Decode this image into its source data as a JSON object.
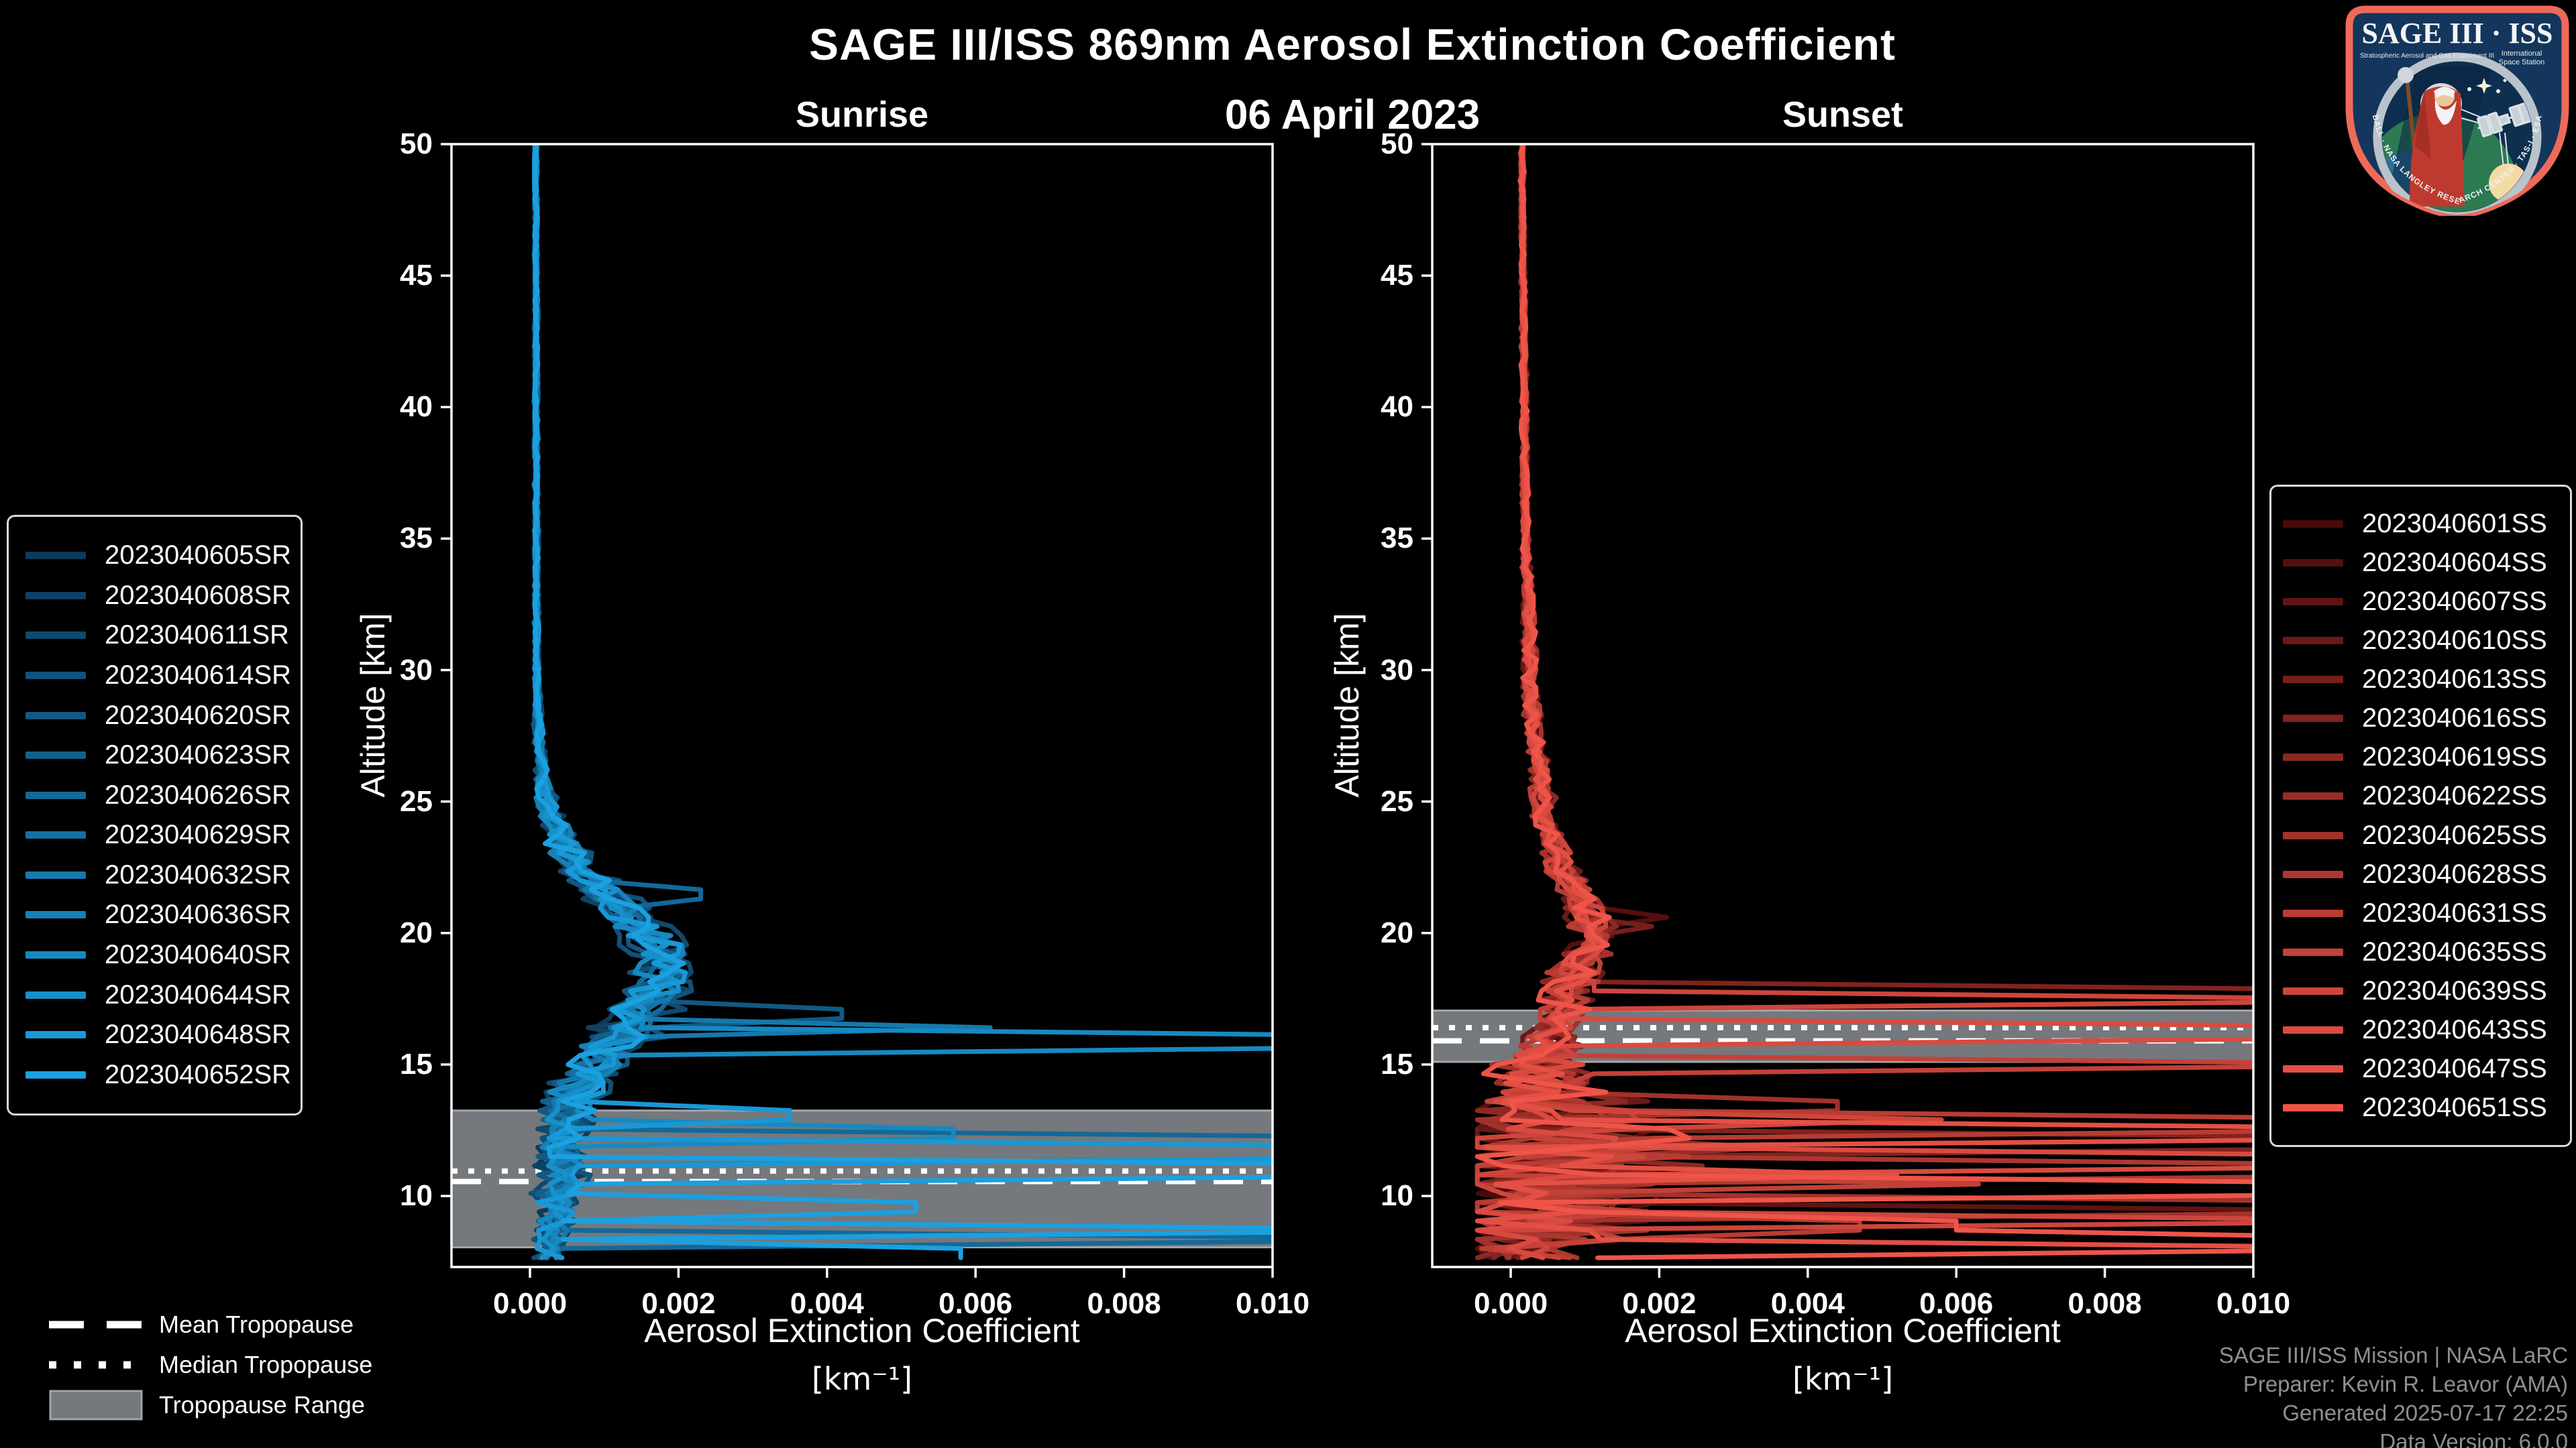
{
  "title": "SAGE III/ISS 869nm Aerosol Extinction Coefficient",
  "subtitle_date": "06 April 2023",
  "axes": {
    "x_label": "Aerosol Extinction Coefficient",
    "x_unit": "[km⁻¹]",
    "y_label": "Altitude [km]",
    "x_tick_labels": [
      "0.000",
      "0.002",
      "0.004",
      "0.006",
      "0.008",
      "0.010"
    ],
    "x_tick_values": [
      0.0,
      0.002,
      0.004,
      0.006,
      0.008,
      0.01
    ],
    "y_tick_labels": [
      "10",
      "15",
      "20",
      "25",
      "30",
      "35",
      "40",
      "45",
      "50"
    ],
    "y_tick_values": [
      10,
      15,
      20,
      25,
      30,
      35,
      40,
      45,
      50
    ]
  },
  "tropopause_legend": [
    {
      "label": "Mean Tropopause",
      "style": "dashed"
    },
    {
      "label": "Median Tropopause",
      "style": "dotted"
    },
    {
      "label": "Tropopause Range",
      "style": "band"
    }
  ],
  "footer": {
    "lines": [
      "SAGE III/ISS Mission | NASA LaRC",
      "Preparer: Kevin R. Leavor (AMA)",
      "Generated 2025-07-17 22:25",
      "Data Version: 6.0.0"
    ]
  },
  "logo": {
    "main_text": "SAGE III · ISS",
    "sub_left": "Stratospheric Aerosol and Gas Experiment III",
    "sub_right_1": "International",
    "sub_right_2": "Space Station",
    "ring_text": "BALL · NASA LANGLEY RESEARCH CENTER · TAS-I · ESA",
    "border_color": "#ee6a58",
    "field_color": "#14365c"
  },
  "colors": {
    "background": "#000000",
    "spine": "#ffffff",
    "tropopause_band": "#75787c",
    "tropopause_band_edge": "#a2a5a9",
    "tropopause_line": "#ffffff",
    "footer_text": "#8d9094"
  },
  "chart_data": [
    {
      "type": "line",
      "panel": "sunrise",
      "title": "Sunrise",
      "xlabel": "Aerosol Extinction Coefficient [km⁻¹]",
      "ylabel": "Altitude [km]",
      "xlim": [
        -0.001057,
        0.01
      ],
      "ylim": [
        7.3,
        50
      ],
      "grid": false,
      "legend_position": "outside-left",
      "tropopause": {
        "mean_km": 10.55,
        "median_km": 10.95,
        "range_km": [
          8.05,
          13.25
        ]
      },
      "base_profile": [
        [
          50,
          8e-05
        ],
        [
          30,
          9e-05
        ],
        [
          27,
          0.00013
        ],
        [
          25,
          0.0002
        ],
        [
          23.5,
          0.0004
        ],
        [
          22,
          0.0008
        ],
        [
          21,
          0.0012
        ],
        [
          20,
          0.0016
        ],
        [
          19,
          0.0018
        ],
        [
          18,
          0.0017
        ],
        [
          17,
          0.00155
        ],
        [
          16,
          0.00125
        ],
        [
          15,
          0.0009
        ],
        [
          14,
          0.0006
        ],
        [
          13,
          0.0005
        ],
        [
          12,
          0.00045
        ],
        [
          11,
          0.0004
        ],
        [
          10,
          0.0004
        ],
        [
          9,
          0.00035
        ],
        [
          8,
          0.0003
        ],
        [
          7.3,
          0.0003
        ]
      ],
      "noise_profile": [
        [
          50,
          2e-05
        ],
        [
          30,
          3e-05
        ],
        [
          26,
          8e-05
        ],
        [
          24,
          0.0002
        ],
        [
          22,
          0.0003
        ],
        [
          20,
          0.00035
        ],
        [
          18,
          0.0004
        ],
        [
          17,
          0.0005
        ],
        [
          16,
          0.0005
        ],
        [
          15,
          0.0004
        ],
        [
          14,
          0.0004
        ],
        [
          12,
          0.0003
        ],
        [
          10,
          0.0003
        ],
        [
          8,
          0.0002
        ],
        [
          7.3,
          0.0002
        ]
      ],
      "series": [
        {
          "name": "2023040605SR",
          "color": "#0d3a5a",
          "seed": 1,
          "spikes": []
        },
        {
          "name": "2023040608SR",
          "color": "#0e4264",
          "seed": 2,
          "spikes": []
        },
        {
          "name": "2023040611SR",
          "color": "#0f4a6f",
          "seed": 3,
          "spikes": []
        },
        {
          "name": "2023040614SR",
          "color": "#105279",
          "seed": 4,
          "spikes": []
        },
        {
          "name": "2023040620SR",
          "color": "#115983",
          "seed": 5,
          "spikes": [
            {
              "a1": 17.0,
              "a2": 16.8,
              "x": 0.0042
            }
          ]
        },
        {
          "name": "2023040623SR",
          "color": "#12618d",
          "seed": 6,
          "spikes": []
        },
        {
          "name": "2023040626SR",
          "color": "#136998",
          "seed": 7,
          "spikes": [
            {
              "a1": 12.25,
              "a2": 11.65,
              "x": 0.013
            },
            {
              "a1": 8.45,
              "a2": 8.2,
              "x": 0.013
            },
            {
              "a1": 21.7,
              "a2": 21.4,
              "x": 0.0023
            }
          ]
        },
        {
          "name": "2023040629SR",
          "color": "#1471a2",
          "seed": 8,
          "spikes": []
        },
        {
          "name": "2023040632SR",
          "color": "#1579ac",
          "seed": 9,
          "spikes": [
            {
              "a1": 16.55,
              "a2": 16.35,
              "x": 0.0062
            }
          ]
        },
        {
          "name": "2023040636SR",
          "color": "#1681b7",
          "seed": 10,
          "spikes": []
        },
        {
          "name": "2023040640SR",
          "color": "#1789c1",
          "seed": 11,
          "spikes": [
            {
              "a1": 16.15,
              "a2": 15.85,
              "x": 0.013
            },
            {
              "a1": 12.5,
              "a2": 12.35,
              "x": 0.0057
            }
          ]
        },
        {
          "name": "2023040644SR",
          "color": "#1890cb",
          "seed": 12,
          "spikes": []
        },
        {
          "name": "2023040648SR",
          "color": "#1998d6",
          "seed": 13,
          "spikes": [
            {
              "a1": 11.95,
              "a2": 11.35,
              "x": 0.013
            },
            {
              "a1": 13.1,
              "a2": 12.9,
              "x": 0.0035
            }
          ]
        },
        {
          "name": "2023040652SR",
          "color": "#1ba0e0",
          "seed": 14,
          "spikes": [
            {
              "a1": 11.05,
              "a2": 10.75,
              "x": 0.013
            },
            {
              "a1": 8.85,
              "a2": 8.55,
              "x": 0.013
            },
            {
              "a1": 9.7,
              "a2": 9.5,
              "x": 0.0052
            },
            {
              "a1": 7.9,
              "a2": 7.4,
              "x": 0.0058
            }
          ]
        }
      ]
    },
    {
      "type": "line",
      "panel": "sunset",
      "title": "Sunset",
      "xlabel": "Aerosol Extinction Coefficient [km⁻¹]",
      "ylabel": "Altitude [km]",
      "xlim": [
        -0.001057,
        0.01
      ],
      "ylim": [
        7.3,
        50
      ],
      "grid": false,
      "legend_position": "outside-right",
      "tropopause": {
        "mean_km": 15.9,
        "median_km": 16.4,
        "range_km": [
          15.1,
          17.05
        ]
      },
      "base_profile": [
        [
          50,
          0.00015
        ],
        [
          35,
          0.0002
        ],
        [
          30,
          0.00026
        ],
        [
          28,
          0.0003
        ],
        [
          26,
          0.0004
        ],
        [
          24,
          0.0005
        ],
        [
          22.5,
          0.0007
        ],
        [
          21,
          0.001
        ],
        [
          20,
          0.00115
        ],
        [
          19.5,
          0.0011
        ],
        [
          19,
          0.00095
        ],
        [
          18,
          0.0008
        ],
        [
          17,
          0.00065
        ],
        [
          16,
          0.00055
        ],
        [
          15,
          0.0005
        ],
        [
          14,
          0.0005
        ],
        [
          13,
          0.0005
        ],
        [
          12,
          0.00045
        ],
        [
          11,
          0.0005
        ],
        [
          10,
          0.00045
        ],
        [
          9,
          0.0004
        ],
        [
          8,
          0.00035
        ],
        [
          7.3,
          0.0003
        ]
      ],
      "noise_profile": [
        [
          50,
          2e-05
        ],
        [
          35,
          4e-05
        ],
        [
          30,
          8e-05
        ],
        [
          27,
          0.0001
        ],
        [
          24,
          0.00015
        ],
        [
          22,
          0.0002
        ],
        [
          20,
          0.00025
        ],
        [
          18,
          0.0003
        ],
        [
          16,
          0.0003
        ],
        [
          14,
          0.0008
        ],
        [
          13,
          0.0012
        ],
        [
          12,
          0.0015
        ],
        [
          11,
          0.0015
        ],
        [
          10,
          0.0015
        ],
        [
          9,
          0.0012
        ],
        [
          8,
          0.001
        ],
        [
          7.3,
          0.0008
        ]
      ],
      "series": [
        {
          "name": "2023040601SS",
          "color": "#4a0a0a",
          "seed": 101,
          "spikes": []
        },
        {
          "name": "2023040604SS",
          "color": "#550f0e",
          "seed": 102,
          "spikes": [
            {
              "a1": 20.7,
              "a2": 20.5,
              "x": 0.0021
            }
          ]
        },
        {
          "name": "2023040607SS",
          "color": "#601412",
          "seed": 103,
          "spikes": [
            {
              "a1": 9.35,
              "a2": 9.1,
              "x": 0.013
            }
          ]
        },
        {
          "name": "2023040610SS",
          "color": "#6b1916",
          "seed": 104,
          "spikes": [
            {
              "a1": 10.5,
              "a2": 10.2,
              "x": 0.013
            }
          ]
        },
        {
          "name": "2023040613SS",
          "color": "#761e1a",
          "seed": 105,
          "spikes": [
            {
              "a1": 20.3,
              "a2": 20.1,
              "x": 0.0019
            }
          ]
        },
        {
          "name": "2023040616SS",
          "color": "#81231f",
          "seed": 106,
          "spikes": [
            {
              "a1": 17.85,
              "a2": 17.6,
              "x": 0.013
            },
            {
              "a1": 12.3,
              "a2": 12.0,
              "x": 0.013
            }
          ]
        },
        {
          "name": "2023040619SS",
          "color": "#8c2823",
          "seed": 107,
          "spikes": []
        },
        {
          "name": "2023040622SS",
          "color": "#972d27",
          "seed": 108,
          "spikes": [
            {
              "a1": 12.0,
              "a2": 11.85,
              "x": 0.0036
            }
          ]
        },
        {
          "name": "2023040625SS",
          "color": "#a2322b",
          "seed": 109,
          "spikes": [
            {
              "a1": 13.55,
              "a2": 13.4,
              "x": 0.0044
            },
            {
              "a1": 9.85,
              "a2": 9.55,
              "x": 0.013
            }
          ]
        },
        {
          "name": "2023040628SS",
          "color": "#ad372f",
          "seed": 110,
          "spikes": [
            {
              "a1": 11.05,
              "a2": 10.8,
              "x": 0.013
            }
          ]
        },
        {
          "name": "2023040631SS",
          "color": "#b83c33",
          "seed": 111,
          "spikes": [
            {
              "a1": 12.9,
              "a2": 12.6,
              "x": 0.013
            },
            {
              "a1": 8.95,
              "a2": 8.8,
              "x": 0.0047
            }
          ]
        },
        {
          "name": "2023040635SS",
          "color": "#c34138",
          "seed": 112,
          "spikes": [
            {
              "a1": 15.15,
              "a2": 14.9,
              "x": 0.013
            },
            {
              "a1": 10.6,
              "a2": 10.45,
              "x": 0.0063
            }
          ]
        },
        {
          "name": "2023040639SS",
          "color": "#ce453c",
          "seed": 113,
          "spikes": [
            {
              "a1": 17.6,
              "a2": 17.35,
              "x": 0.013
            },
            {
              "a1": 13.05,
              "a2": 12.85,
              "x": 0.0058
            },
            {
              "a1": 9.2,
              "a2": 8.9,
              "x": 0.013
            }
          ]
        },
        {
          "name": "2023040643SS",
          "color": "#d94a40",
          "seed": 114,
          "spikes": [
            {
              "a1": 16.5,
              "a2": 16.2,
              "x": 0.013
            },
            {
              "a1": 11.5,
              "a2": 11.2,
              "x": 0.013
            }
          ]
        },
        {
          "name": "2023040647SS",
          "color": "#e44f44",
          "seed": 115,
          "spikes": [
            {
              "a1": 12.45,
              "a2": 12.15,
              "x": 0.013
            },
            {
              "a1": 10.9,
              "a2": 10.7,
              "x": 0.0052
            },
            {
              "a1": 7.9,
              "a2": 7.6,
              "x": 0.013
            }
          ]
        },
        {
          "name": "2023040651SS",
          "color": "#ef5448",
          "seed": 116,
          "spikes": [
            {
              "a1": 10.35,
              "a2": 10.05,
              "x": 0.013
            },
            {
              "a1": 9.0,
              "a2": 8.8,
              "x": 0.006
            },
            {
              "a1": 8.3,
              "a2": 8.05,
              "x": 0.013
            }
          ]
        }
      ]
    }
  ]
}
